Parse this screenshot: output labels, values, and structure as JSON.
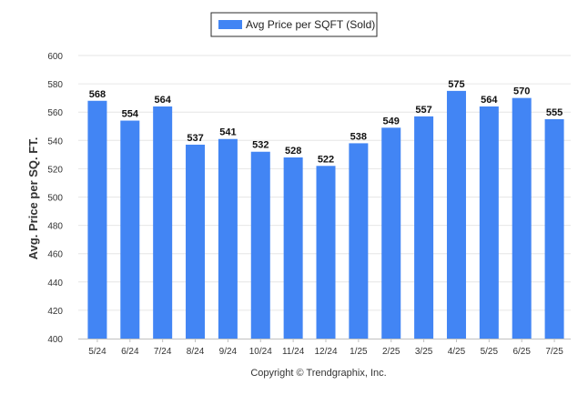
{
  "chart_data": {
    "type": "bar",
    "title": "",
    "xlabel": "",
    "ylabel": "Avg. Price per SQ. FT.",
    "categories": [
      "5/24",
      "6/24",
      "7/24",
      "8/24",
      "9/24",
      "10/24",
      "11/24",
      "12/24",
      "1/25",
      "2/25",
      "3/25",
      "4/25",
      "5/25",
      "6/25",
      "7/25"
    ],
    "series": [
      {
        "name": "Avg Price per SQFT (Sold)",
        "color": "#4285f4",
        "values": [
          568,
          554,
          564,
          537,
          541,
          532,
          528,
          522,
          538,
          549,
          557,
          575,
          564,
          570,
          555
        ]
      }
    ],
    "ylim": [
      400,
      600
    ],
    "yticks": [
      400,
      420,
      440,
      460,
      480,
      500,
      520,
      540,
      560,
      580,
      600
    ],
    "grid": true,
    "legend": "top-center",
    "data_labels": true
  },
  "legend": {
    "label": "Avg Price per SQFT (Sold)"
  },
  "footer": {
    "copyright": "Copyright © Trendgraphix, Inc."
  }
}
